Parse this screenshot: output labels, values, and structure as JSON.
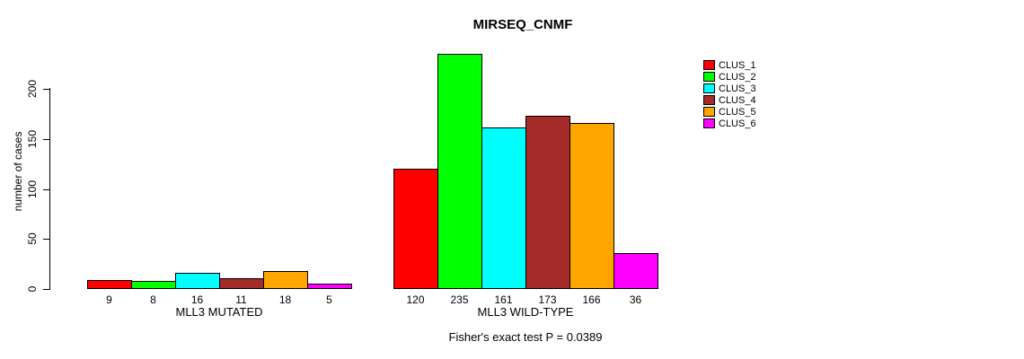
{
  "chart_data": {
    "type": "bar",
    "title": "MIRSEQ_CNMF",
    "ylabel": "number of cases",
    "xlabel": "",
    "ylim": [
      0,
      200
    ],
    "yticks": [
      0,
      50,
      100,
      150,
      200
    ],
    "grid": false,
    "legend_position": "right",
    "categories": [
      "MLL3 MUTATED",
      "MLL3 WILD-TYPE"
    ],
    "series": [
      {
        "name": "CLUS_1",
        "color": "#FF0000",
        "values": [
          9,
          120
        ]
      },
      {
        "name": "CLUS_2",
        "color": "#00FF00",
        "values": [
          8,
          235
        ]
      },
      {
        "name": "CLUS_3",
        "color": "#00FFFF",
        "values": [
          16,
          161
        ]
      },
      {
        "name": "CLUS_4",
        "color": "#A52A2A",
        "values": [
          11,
          173
        ]
      },
      {
        "name": "CLUS_5",
        "color": "#FFA500",
        "values": [
          18,
          166
        ]
      },
      {
        "name": "CLUS_6",
        "color": "#FF00FF",
        "values": [
          5,
          36
        ]
      }
    ],
    "bar_value_labels_shown": true,
    "annotation": "Fisher's exact test P = 0.0389"
  }
}
